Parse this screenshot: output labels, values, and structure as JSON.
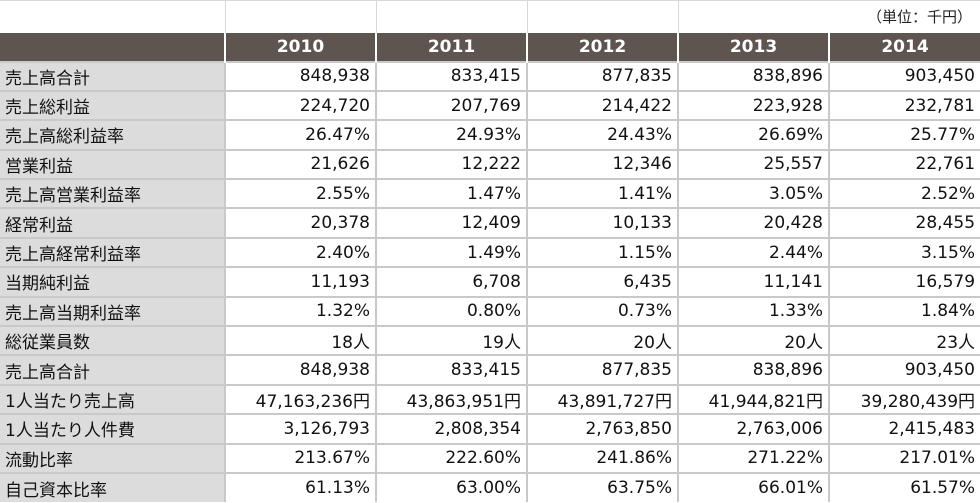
{
  "unit_note": "（単位：千円）",
  "years": [
    "2010",
    "2011",
    "2012",
    "2013",
    "2014"
  ],
  "rows": [
    {
      "label": "売上高合計",
      "values": [
        "848,938",
        "833,415",
        "877,835",
        "838,896",
        "903,450"
      ]
    },
    {
      "label": "売上総利益",
      "values": [
        "224,720",
        "207,769",
        "214,422",
        "223,928",
        "232,781"
      ]
    },
    {
      "label": "売上高総利益率",
      "values": [
        "26.47%",
        "24.93%",
        "24.43%",
        "26.69%",
        "25.77%"
      ]
    },
    {
      "label": "営業利益",
      "values": [
        "21,626",
        "12,222",
        "12,346",
        "25,557",
        "22,761"
      ]
    },
    {
      "label": "売上高営業利益率",
      "values": [
        "2.55%",
        "1.47%",
        "1.41%",
        "3.05%",
        "2.52%"
      ]
    },
    {
      "label": "経常利益",
      "values": [
        "20,378",
        "12,409",
        "10,133",
        "20,428",
        "28,455"
      ]
    },
    {
      "label": "売上高経常利益率",
      "values": [
        "2.40%",
        "1.49%",
        "1.15%",
        "2.44%",
        "3.15%"
      ]
    },
    {
      "label": "当期純利益",
      "values": [
        "11,193",
        "6,708",
        "6,435",
        "11,141",
        "16,579"
      ]
    },
    {
      "label": "売上高当期利益率",
      "values": [
        "1.32%",
        "0.80%",
        "0.73%",
        "1.33%",
        "1.84%"
      ]
    },
    {
      "label": "総従業員数",
      "values": [
        "18人",
        "19人",
        "20人",
        "20人",
        "23人"
      ]
    },
    {
      "label": "売上高合計",
      "values": [
        "848,938",
        "833,415",
        "877,835",
        "838,896",
        "903,450"
      ]
    },
    {
      "label": "1人当たり売上高",
      "values": [
        "47,163,236円",
        "43,863,951円",
        "43,891,727円",
        "41,944,821円",
        "39,280,439円"
      ]
    },
    {
      "label": "1人当たり人件費",
      "values": [
        "3,126,793",
        "2,808,354",
        "2,763,850",
        "2,763,006",
        "2,415,483"
      ]
    },
    {
      "label": "流動比率",
      "values": [
        "213.67%",
        "222.60%",
        "241.86%",
        "271.22%",
        "217.01%"
      ]
    },
    {
      "label": "自己資本比率",
      "values": [
        "61.13%",
        "63.00%",
        "63.75%",
        "66.01%",
        "61.57%"
      ]
    }
  ],
  "colors": {
    "header_bg": "#5e5450",
    "header_text": "#ffffff",
    "label_bg": "#dcdcdc",
    "grid": "#c9c9c9"
  }
}
